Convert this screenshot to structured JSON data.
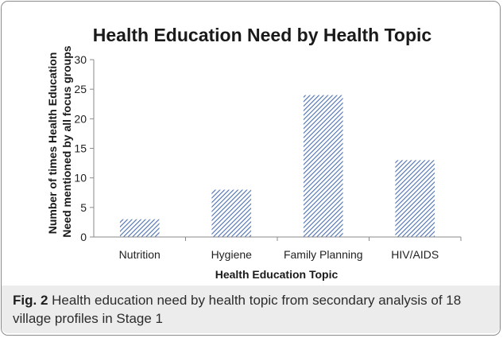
{
  "chart_data": {
    "type": "bar",
    "title": "Health Education Need by Health Topic",
    "xlabel": "Health Education Topic",
    "ylabel": [
      "Number of times Health Education",
      "Need mentioned by all focus groups"
    ],
    "categories": [
      "Nutrition",
      "Hygiene",
      "Family Planning",
      "HIV/AIDS"
    ],
    "values": [
      3,
      8,
      24,
      13
    ],
    "ylim": [
      0,
      30
    ],
    "yticks": [
      0,
      5,
      10,
      15,
      20,
      25,
      30
    ],
    "grid": false,
    "legend": "none",
    "bar_color": "#4a6fb0",
    "bar_fill": "diagonal-hatch"
  },
  "caption": {
    "label": "Fig. 2",
    "text": "Health education need by health topic from secondary analysis of 18 village profiles in Stage 1"
  }
}
